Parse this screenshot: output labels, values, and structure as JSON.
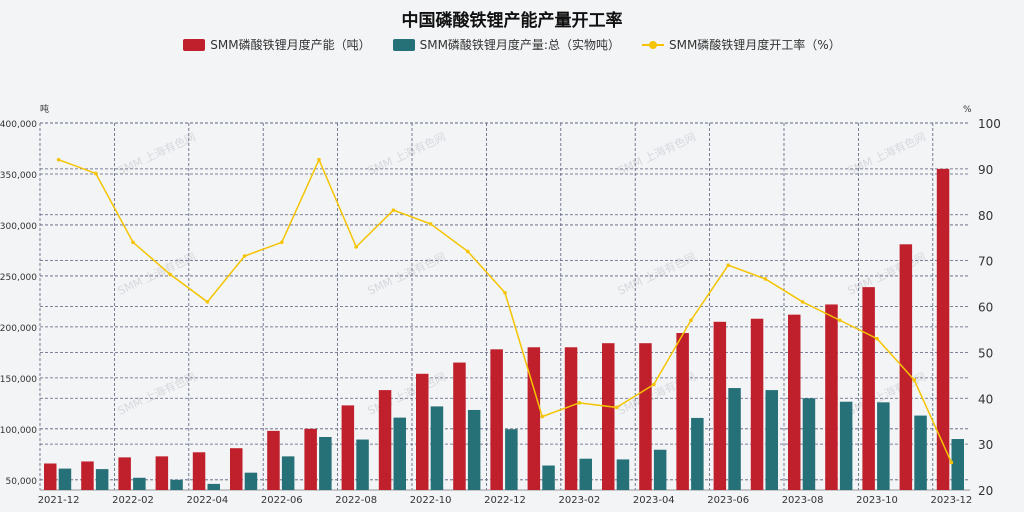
{
  "chart_data": {
    "type": "bar+line",
    "title": "中国磷酸铁锂产能产量开工率",
    "watermark": "SMM 上海有色网",
    "left_axis": {
      "unit": "吨",
      "range": [
        40000,
        400000
      ],
      "ticks": [
        "50,000",
        "100,000",
        "150,000",
        "200,000",
        "250,000",
        "300,000",
        "350,000",
        "400,000"
      ],
      "tick_values": [
        50000,
        100000,
        150000,
        200000,
        250000,
        300000,
        350000,
        400000
      ]
    },
    "right_axis": {
      "unit": "%",
      "range": [
        20,
        100
      ],
      "ticks": [
        "20",
        "30",
        "40",
        "50",
        "60",
        "70",
        "80",
        "90",
        "100"
      ]
    },
    "grid": true,
    "legend_position": "top",
    "categories": [
      "2021-12",
      "2022-01",
      "2022-02",
      "2022-03",
      "2022-04",
      "2022-05",
      "2022-06",
      "2022-07",
      "2022-08",
      "2022-09",
      "2022-10",
      "2022-11",
      "2022-12",
      "2023-01",
      "2023-02",
      "2023-03",
      "2023-04",
      "2023-05",
      "2023-06",
      "2023-07",
      "2023-08",
      "2023-09",
      "2023-10",
      "2023-11",
      "2023-12"
    ],
    "x_tick_labels": [
      "2021-12",
      "2022-02",
      "2022-04",
      "2022-06",
      "2022-08",
      "2022-10",
      "2022-12",
      "2023-02",
      "2023-04",
      "2023-06",
      "2023-08",
      "2023-10",
      "2023-12"
    ],
    "series": [
      {
        "name": "SMM磷酸铁锂月度产能（吨）",
        "type": "bar",
        "axis": "left",
        "color": "#c0202b",
        "values": [
          66000,
          68000,
          72000,
          73000,
          77000,
          81000,
          98000,
          100000,
          123000,
          138000,
          154000,
          165000,
          178000,
          180000,
          180000,
          184000,
          184000,
          194000,
          205000,
          208000,
          212000,
          222000,
          239000,
          281000,
          355000
        ]
      },
      {
        "name": "SMM磷酸铁锂月度产量:总（实物吨）",
        "type": "bar",
        "axis": "left",
        "color": "#267178",
        "values": [
          61000,
          60500,
          52000,
          50000,
          46000,
          57000,
          73000,
          92000,
          89500,
          111000,
          122000,
          118500,
          99600,
          64000,
          70700,
          70000,
          79500,
          110700,
          140000,
          138000,
          130000,
          126600,
          126000,
          113000,
          90000
        ]
      },
      {
        "name": "SMM磷酸铁锂月度开工率（%）",
        "type": "line",
        "axis": "right",
        "color": "#f5c400",
        "values": [
          92,
          89,
          74,
          67,
          61,
          71,
          74,
          92,
          73,
          81,
          78,
          72,
          63,
          36,
          39,
          38,
          43,
          57,
          69,
          66,
          61,
          57,
          53,
          44,
          26
        ]
      }
    ]
  }
}
